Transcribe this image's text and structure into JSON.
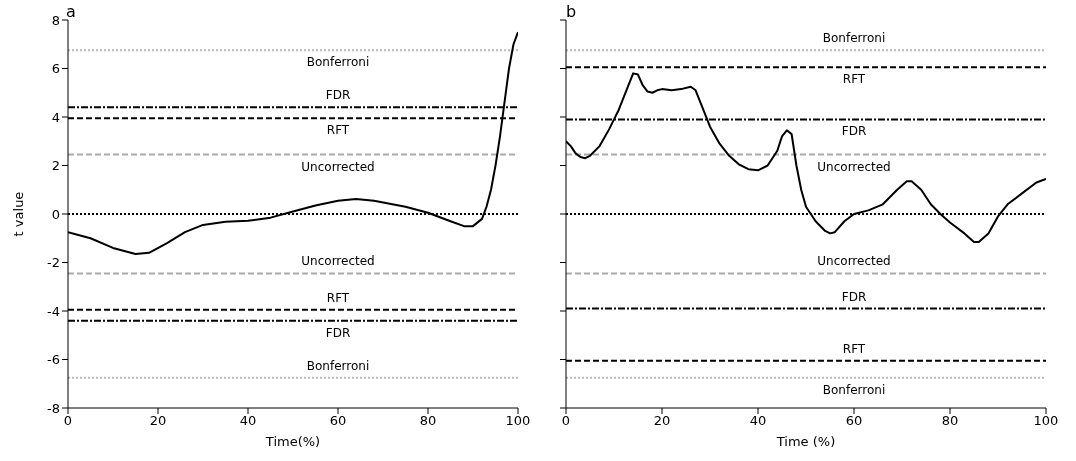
{
  "chart_data": [
    {
      "type": "line",
      "title": "a",
      "xlabel": "Time(%)",
      "ylabel": "t value",
      "xlim": [
        0,
        100
      ],
      "xticks": [
        0,
        20,
        40,
        60,
        80,
        100
      ],
      "ylim": [
        -8,
        8
      ],
      "yticks": [
        -8,
        -6,
        -4,
        -2,
        0,
        2,
        4,
        6,
        8
      ],
      "marker": "none",
      "line_style": "solid",
      "x": [
        0,
        5,
        10,
        15,
        18,
        22,
        26,
        30,
        35,
        40,
        45,
        50,
        55,
        60,
        64,
        68,
        75,
        80,
        85,
        88,
        90,
        92,
        93,
        94,
        95,
        96,
        97,
        98,
        99,
        100
      ],
      "series": [
        {
          "color": "#000000",
          "values": [
            -0.75,
            -1.0,
            -1.4,
            -1.65,
            -1.6,
            -1.2,
            -0.75,
            -0.45,
            -0.32,
            -0.28,
            -0.15,
            0.1,
            0.35,
            0.55,
            0.62,
            0.55,
            0.3,
            0.05,
            -0.3,
            -0.5,
            -0.5,
            -0.2,
            0.3,
            1.0,
            2.0,
            3.2,
            4.6,
            6.0,
            7.0,
            7.5
          ]
        }
      ],
      "ref_lines": [
        {
          "axis": "y",
          "value": 0,
          "color": "#000000",
          "line_style": "dotted"
        },
        {
          "axis": "y",
          "value": 6.75,
          "label": "Bonferroni",
          "color": "#bbbbbb",
          "line_style": "dotted"
        },
        {
          "axis": "y",
          "value": 4.4,
          "label": "FDR",
          "color": "#000000",
          "line_style": "dashdot"
        },
        {
          "axis": "y",
          "value": 3.95,
          "label": "RFT",
          "color": "#000000",
          "line_style": "dashed"
        },
        {
          "axis": "y",
          "value": 2.45,
          "label": "Uncorrected",
          "color": "#aaaaaa",
          "line_style": "dashed"
        },
        {
          "axis": "y",
          "value": -2.45,
          "label": "Uncorrected",
          "color": "#aaaaaa",
          "line_style": "dashed"
        },
        {
          "axis": "y",
          "value": -3.95,
          "label": "RFT",
          "color": "#000000",
          "line_style": "dashed"
        },
        {
          "axis": "y",
          "value": -4.4,
          "label": "FDR",
          "color": "#000000",
          "line_style": "dashdot"
        },
        {
          "axis": "y",
          "value": -6.75,
          "label": "Bonferroni",
          "color": "#bbbbbb",
          "line_style": "dotted"
        }
      ]
    },
    {
      "type": "line",
      "title": "b",
      "xlabel": "Time (%)",
      "xlim": [
        0,
        100
      ],
      "xticks": [
        0,
        20,
        40,
        60,
        80,
        100
      ],
      "ylim": [
        -8,
        8
      ],
      "yticks": [
        -8,
        -6,
        -4,
        -2,
        0,
        2,
        4,
        6,
        8
      ],
      "tick_labels": "x",
      "marker": "none",
      "line_style": "solid",
      "x": [
        0,
        1,
        2,
        3,
        4,
        5,
        7,
        9,
        11,
        13,
        14,
        15,
        16,
        17,
        18,
        19,
        20,
        22,
        24,
        26,
        27,
        28,
        30,
        32,
        34,
        36,
        38,
        40,
        42,
        44,
        45,
        46,
        47,
        48,
        49,
        50,
        52,
        54,
        55,
        56,
        58,
        60,
        63,
        66,
        69,
        71,
        72,
        74,
        76,
        78,
        80,
        83,
        85,
        86,
        88,
        90,
        92,
        95,
        98,
        100
      ],
      "series": [
        {
          "color": "#000000",
          "values": [
            3.0,
            2.8,
            2.5,
            2.35,
            2.3,
            2.4,
            2.8,
            3.5,
            4.3,
            5.3,
            5.8,
            5.75,
            5.3,
            5.05,
            5.0,
            5.1,
            5.15,
            5.1,
            5.15,
            5.25,
            5.1,
            4.6,
            3.6,
            2.9,
            2.4,
            2.05,
            1.85,
            1.8,
            2.0,
            2.6,
            3.2,
            3.45,
            3.3,
            2.0,
            1.0,
            0.3,
            -0.3,
            -0.7,
            -0.8,
            -0.75,
            -0.3,
            0.0,
            0.15,
            0.4,
            1.0,
            1.35,
            1.35,
            1.0,
            0.4,
            0.0,
            -0.35,
            -0.8,
            -1.15,
            -1.15,
            -0.8,
            -0.1,
            0.4,
            0.85,
            1.3,
            1.45
          ]
        }
      ],
      "ref_lines": [
        {
          "axis": "y",
          "value": 0,
          "color": "#000000",
          "line_style": "dotted"
        },
        {
          "axis": "y",
          "value": 6.75,
          "label": "Bonferroni",
          "color": "#bbbbbb",
          "line_style": "dotted"
        },
        {
          "axis": "y",
          "value": 6.05,
          "label": "RFT",
          "color": "#000000",
          "line_style": "dashed"
        },
        {
          "axis": "y",
          "value": 3.9,
          "label": "FDR",
          "color": "#000000",
          "line_style": "dashdot"
        },
        {
          "axis": "y",
          "value": 2.45,
          "label": "Uncorrected",
          "color": "#aaaaaa",
          "line_style": "dashed"
        },
        {
          "axis": "y",
          "value": -2.45,
          "label": "Uncorrected",
          "color": "#aaaaaa",
          "line_style": "dashed"
        },
        {
          "axis": "y",
          "value": -3.9,
          "label": "FDR",
          "color": "#000000",
          "line_style": "dashdot"
        },
        {
          "axis": "y",
          "value": -6.05,
          "label": "RFT",
          "color": "#000000",
          "line_style": "dashed"
        },
        {
          "axis": "y",
          "value": -6.75,
          "label": "Bonferroni",
          "color": "#bbbbbb",
          "line_style": "dotted"
        }
      ]
    }
  ]
}
